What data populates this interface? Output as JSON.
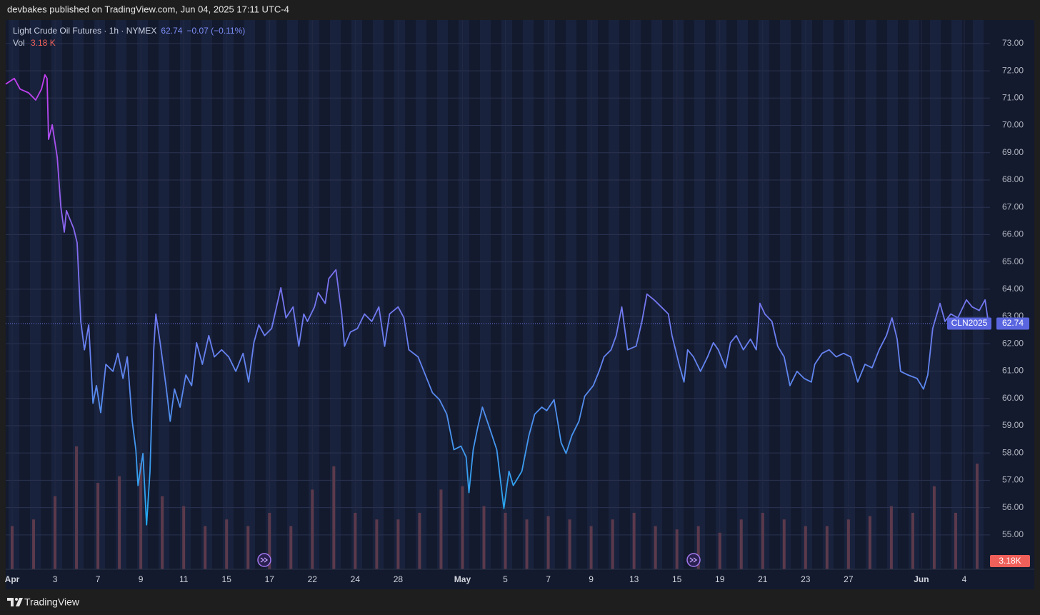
{
  "header": {
    "title": "devbakes published on TradingView.com, Jun 04, 2025 17:11 UTC-4"
  },
  "footer": {
    "brand": "TradingView"
  },
  "chart_data": {
    "type": "line",
    "title": "Light Crude Oil Futures · 1h · NYMEX",
    "last_value": 62.74,
    "change": "−0.07 (−0.11%)",
    "symbol": "CLN2025",
    "grid": true,
    "xlim": [
      -0.3,
      45.6
    ],
    "ylim": [
      53.74,
      73.86
    ],
    "xticks": [
      {
        "value": 0,
        "label": "Apr"
      },
      {
        "value": 2,
        "label": "3"
      },
      {
        "value": 4,
        "label": "7"
      },
      {
        "value": 6,
        "label": "9"
      },
      {
        "value": 8,
        "label": "11"
      },
      {
        "value": 10,
        "label": "15"
      },
      {
        "value": 12,
        "label": "17"
      },
      {
        "value": 14,
        "label": "22"
      },
      {
        "value": 16,
        "label": "24"
      },
      {
        "value": 18,
        "label": "28"
      },
      {
        "value": 21,
        "label": "May"
      },
      {
        "value": 23,
        "label": "5"
      },
      {
        "value": 25,
        "label": "7"
      },
      {
        "value": 27,
        "label": "9"
      },
      {
        "value": 29,
        "label": "13"
      },
      {
        "value": 31,
        "label": "15"
      },
      {
        "value": 33,
        "label": "19"
      },
      {
        "value": 35,
        "label": "21"
      },
      {
        "value": 37,
        "label": "23"
      },
      {
        "value": 39,
        "label": "27"
      },
      {
        "value": 42.4,
        "label": "Jun"
      },
      {
        "value": 44.4,
        "label": "4"
      }
    ],
    "yticks": [
      {
        "value": 55,
        "label": "55.00"
      },
      {
        "value": 56,
        "label": "56.00"
      },
      {
        "value": 57,
        "label": "57.00"
      },
      {
        "value": 58,
        "label": "58.00"
      },
      {
        "value": 59,
        "label": "59.00"
      },
      {
        "value": 60,
        "label": "60.00"
      },
      {
        "value": 61,
        "label": "61.00"
      },
      {
        "value": 62,
        "label": "62.00"
      },
      {
        "value": 63,
        "label": "63.00"
      },
      {
        "value": 64,
        "label": "64.00"
      },
      {
        "value": 65,
        "label": "65.00"
      },
      {
        "value": 66,
        "label": "66.00"
      },
      {
        "value": 67,
        "label": "67.00"
      },
      {
        "value": 68,
        "label": "68.00"
      },
      {
        "value": 69,
        "label": "69.00"
      },
      {
        "value": 70,
        "label": "70.00"
      },
      {
        "value": 71,
        "label": "71.00"
      },
      {
        "value": 72,
        "label": "72.00"
      },
      {
        "value": 73,
        "label": "73.00"
      }
    ],
    "gradient": [
      "#c63cf0",
      "#8a66f0",
      "#5f86f0",
      "#20acf0"
    ],
    "x": [
      -0.3,
      0.1,
      0.37,
      0.77,
      1.1,
      1.37,
      1.53,
      1.63,
      1.7,
      1.87,
      2.1,
      2.27,
      2.43,
      2.53,
      2.87,
      3.03,
      3.2,
      3.37,
      3.57,
      3.77,
      3.93,
      4.13,
      4.37,
      4.7,
      4.93,
      5.17,
      5.37,
      5.6,
      5.77,
      5.87,
      6.1,
      6.27,
      6.43,
      6.6,
      6.7,
      6.9,
      7.17,
      7.37,
      7.57,
      7.83,
      8.1,
      8.37,
      8.6,
      8.87,
      9.17,
      9.43,
      9.77,
      10.1,
      10.43,
      10.77,
      11.03,
      11.27,
      11.5,
      11.77,
      12.1,
      12.53,
      12.77,
      13.1,
      13.37,
      13.6,
      13.77,
      14.1,
      14.27,
      14.6,
      14.77,
      15.1,
      15.37,
      15.5,
      15.77,
      16.1,
      16.43,
      16.77,
      17.1,
      17.37,
      17.6,
      18.0,
      18.27,
      18.5,
      18.93,
      19.27,
      19.6,
      19.93,
      20.27,
      20.6,
      20.93,
      21.17,
      21.3,
      21.5,
      21.7,
      21.93,
      22.27,
      22.6,
      22.93,
      23.17,
      23.37,
      23.77,
      24.1,
      24.37,
      24.7,
      24.93,
      25.27,
      25.6,
      25.83,
      26.1,
      26.43,
      26.7,
      27.1,
      27.37,
      27.6,
      27.93,
      28.17,
      28.43,
      28.7,
      29.1,
      29.37,
      29.6,
      29.93,
      30.27,
      30.6,
      30.77,
      31.1,
      31.33,
      31.5,
      31.77,
      32.1,
      32.43,
      32.7,
      32.93,
      33.27,
      33.5,
      33.77,
      34.1,
      34.43,
      34.7,
      34.87,
      35.1,
      35.43,
      35.7,
      36.0,
      36.27,
      36.6,
      36.93,
      37.27,
      37.43,
      37.77,
      38.1,
      38.43,
      38.77,
      39.1,
      39.43,
      39.77,
      40.1,
      40.43,
      40.77,
      41.03,
      41.27,
      41.43,
      41.77,
      42.2,
      42.5,
      42.7,
      42.93,
      43.27,
      43.5,
      43.77,
      44.1,
      44.5,
      44.77,
      45.1,
      45.37,
      45.53
    ],
    "values": [
      71.51,
      71.72,
      71.33,
      71.19,
      70.93,
      71.33,
      71.85,
      71.72,
      69.49,
      70.02,
      68.84,
      67.01,
      66.09,
      66.88,
      66.22,
      65.7,
      62.82,
      61.78,
      62.69,
      59.82,
      60.47,
      59.48,
      61.25,
      60.99,
      61.65,
      60.73,
      61.52,
      59.16,
      58.12,
      56.81,
      57.98,
      55.37,
      57.33,
      61.78,
      63.09,
      62.04,
      60.47,
      59.16,
      60.34,
      59.68,
      60.86,
      60.47,
      62.04,
      61.25,
      62.3,
      61.52,
      61.78,
      61.52,
      60.99,
      61.65,
      60.6,
      62.04,
      62.69,
      62.3,
      62.56,
      64.05,
      62.95,
      63.35,
      61.91,
      63.09,
      62.82,
      63.35,
      63.87,
      63.48,
      64.39,
      64.71,
      63.09,
      61.91,
      62.43,
      62.56,
      63.09,
      62.82,
      63.35,
      61.91,
      63.09,
      63.35,
      62.95,
      61.78,
      61.52,
      60.86,
      60.21,
      59.95,
      59.42,
      58.12,
      58.25,
      57.85,
      56.55,
      58.12,
      58.9,
      59.68,
      58.9,
      58.12,
      55.97,
      57.33,
      56.81,
      57.33,
      58.64,
      59.42,
      59.68,
      59.55,
      59.95,
      58.38,
      57.98,
      58.64,
      59.16,
      60.08,
      60.47,
      60.99,
      61.52,
      61.78,
      62.3,
      63.35,
      61.78,
      61.91,
      62.82,
      63.82,
      63.61,
      63.35,
      63.09,
      62.3,
      61.25,
      60.6,
      61.78,
      61.52,
      60.99,
      61.52,
      62.04,
      61.78,
      61.12,
      62.04,
      62.3,
      61.78,
      62.17,
      61.78,
      63.48,
      63.09,
      62.82,
      61.91,
      61.52,
      60.47,
      60.99,
      60.73,
      60.6,
      61.25,
      61.65,
      61.78,
      61.52,
      61.65,
      61.52,
      60.6,
      61.25,
      61.12,
      61.78,
      62.3,
      62.95,
      62.17,
      60.99,
      60.86,
      60.73,
      60.34,
      60.86,
      62.56,
      63.48,
      62.82,
      63.09,
      62.95,
      63.61,
      63.35,
      63.22,
      63.61,
      62.74
    ],
    "volume": {
      "name": "Vol",
      "color": "#5b3a4c",
      "vlim": [
        0,
        4.3
      ],
      "x": [
        0,
        1,
        2,
        3,
        4,
        5,
        6,
        7,
        8,
        9,
        10,
        11,
        12,
        13,
        14,
        15,
        16,
        17,
        18,
        19,
        20,
        21,
        22,
        23,
        24,
        25,
        26,
        27,
        28,
        29,
        30,
        31,
        32,
        33,
        34,
        35,
        36,
        37,
        38,
        39,
        40,
        41,
        42,
        43,
        44,
        45
      ],
      "values": [
        1.3,
        1.5,
        2.2,
        3.7,
        2.6,
        2.8,
        3.2,
        2.2,
        1.9,
        1.3,
        1.5,
        1.3,
        1.7,
        1.3,
        2.4,
        3.1,
        1.7,
        1.5,
        1.5,
        1.7,
        2.4,
        2.5,
        1.9,
        1.7,
        1.5,
        1.6,
        1.5,
        1.3,
        1.5,
        1.7,
        1.3,
        1.2,
        1.3,
        1.1,
        1.5,
        1.7,
        1.5,
        1.3,
        1.3,
        1.5,
        1.6,
        1.9,
        1.7,
        2.5,
        1.7,
        3.18
      ],
      "last_label": "3.18 K",
      "badge": "3.18K"
    }
  }
}
